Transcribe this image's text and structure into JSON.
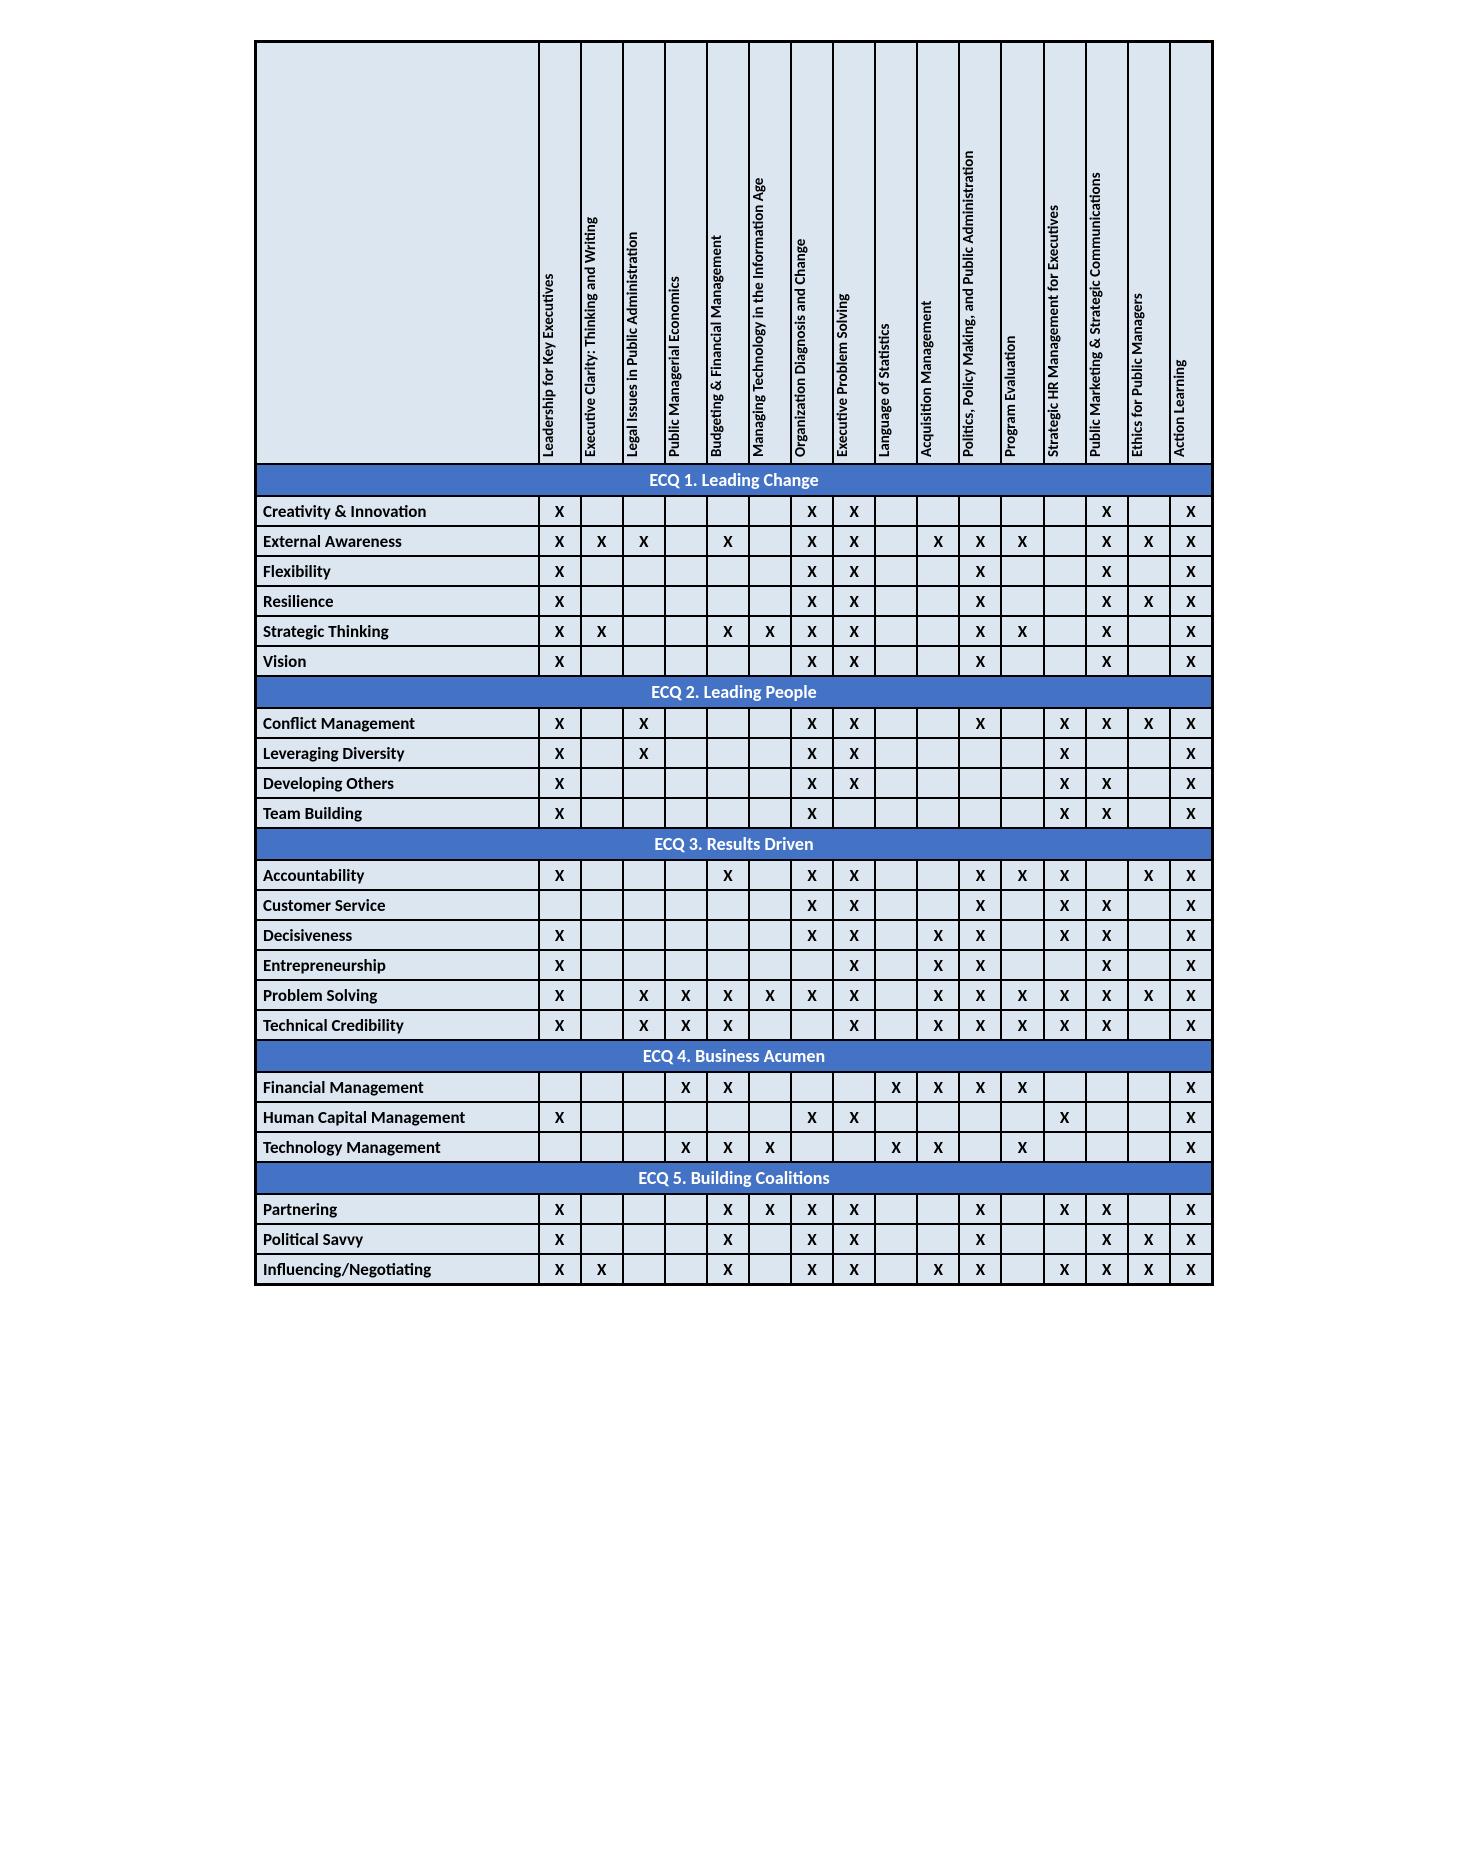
{
  "columns": [
    "Leadership for Key Executives",
    "Executive Clarity: Thinking and Writing",
    "Legal Issues in Public Administration",
    "Public Managerial Economics",
    "Budgeting & Financial Management",
    "Managing Technology in the Information Age",
    "Organization Diagnosis and Change",
    "Executive Problem Solving",
    "Language of Statistics",
    "Acquisition Management",
    "Politics, Policy Making, and Public Administration",
    "Program Evaluation",
    "Strategic HR Management for Executives",
    "Public Marketing & Strategic Communications",
    "Ethics for Public Managers",
    "Action Learning"
  ],
  "sections": [
    {
      "title": "ECQ 1. Leading Change",
      "rows": [
        {
          "label": "Creativity & Innovation",
          "marks": [
            1,
            0,
            0,
            0,
            0,
            0,
            1,
            1,
            0,
            0,
            0,
            0,
            0,
            1,
            0,
            1
          ]
        },
        {
          "label": "External Awareness",
          "marks": [
            1,
            1,
            1,
            0,
            1,
            0,
            1,
            1,
            0,
            1,
            1,
            1,
            0,
            1,
            1,
            1
          ]
        },
        {
          "label": "Flexibility",
          "marks": [
            1,
            0,
            0,
            0,
            0,
            0,
            1,
            1,
            0,
            0,
            1,
            0,
            0,
            1,
            0,
            1
          ]
        },
        {
          "label": "Resilience",
          "marks": [
            1,
            0,
            0,
            0,
            0,
            0,
            1,
            1,
            0,
            0,
            1,
            0,
            0,
            1,
            1,
            1
          ]
        },
        {
          "label": "Strategic Thinking",
          "marks": [
            1,
            1,
            0,
            0,
            1,
            1,
            1,
            1,
            0,
            0,
            1,
            1,
            0,
            1,
            0,
            1
          ]
        },
        {
          "label": "Vision",
          "marks": [
            1,
            0,
            0,
            0,
            0,
            0,
            1,
            1,
            0,
            0,
            1,
            0,
            0,
            1,
            0,
            1
          ]
        }
      ]
    },
    {
      "title": "ECQ 2. Leading People",
      "rows": [
        {
          "label": "Conflict Management",
          "marks": [
            1,
            0,
            1,
            0,
            0,
            0,
            1,
            1,
            0,
            0,
            1,
            0,
            1,
            1,
            1,
            1
          ]
        },
        {
          "label": "Leveraging Diversity",
          "marks": [
            1,
            0,
            1,
            0,
            0,
            0,
            1,
            1,
            0,
            0,
            0,
            0,
            1,
            0,
            0,
            1
          ]
        },
        {
          "label": "Developing Others",
          "marks": [
            1,
            0,
            0,
            0,
            0,
            0,
            1,
            1,
            0,
            0,
            0,
            0,
            1,
            1,
            0,
            1
          ]
        },
        {
          "label": "Team Building",
          "marks": [
            1,
            0,
            0,
            0,
            0,
            0,
            1,
            0,
            0,
            0,
            0,
            0,
            1,
            1,
            0,
            1
          ]
        }
      ]
    },
    {
      "title": "ECQ 3. Results Driven",
      "rows": [
        {
          "label": "Accountability",
          "marks": [
            1,
            0,
            0,
            0,
            1,
            0,
            1,
            1,
            0,
            0,
            1,
            1,
            1,
            0,
            1,
            1
          ]
        },
        {
          "label": "Customer Service",
          "marks": [
            0,
            0,
            0,
            0,
            0,
            0,
            1,
            1,
            0,
            0,
            1,
            0,
            1,
            1,
            0,
            1
          ]
        },
        {
          "label": "Decisiveness",
          "marks": [
            1,
            0,
            0,
            0,
            0,
            0,
            1,
            1,
            0,
            1,
            1,
            0,
            1,
            1,
            0,
            1
          ]
        },
        {
          "label": "Entrepreneurship",
          "marks": [
            1,
            0,
            0,
            0,
            0,
            0,
            0,
            1,
            0,
            1,
            1,
            0,
            0,
            1,
            0,
            1
          ]
        },
        {
          "label": "Problem Solving",
          "marks": [
            1,
            0,
            1,
            1,
            1,
            1,
            1,
            1,
            0,
            1,
            1,
            1,
            1,
            1,
            1,
            1
          ]
        },
        {
          "label": "Technical Credibility",
          "marks": [
            1,
            0,
            1,
            1,
            1,
            0,
            0,
            1,
            0,
            1,
            1,
            1,
            1,
            1,
            0,
            1
          ]
        }
      ]
    },
    {
      "title": "ECQ 4. Business Acumen",
      "rows": [
        {
          "label": "Financial Management",
          "marks": [
            0,
            0,
            0,
            1,
            1,
            0,
            0,
            0,
            1,
            1,
            1,
            1,
            0,
            0,
            0,
            1
          ]
        },
        {
          "label": "Human Capital Management",
          "marks": [
            1,
            0,
            0,
            0,
            0,
            0,
            1,
            1,
            0,
            0,
            0,
            0,
            1,
            0,
            0,
            1
          ]
        },
        {
          "label": "Technology Management",
          "marks": [
            0,
            0,
            0,
            1,
            1,
            1,
            0,
            0,
            1,
            1,
            0,
            1,
            0,
            0,
            0,
            1
          ]
        }
      ]
    },
    {
      "title": "ECQ 5. Building Coalitions",
      "rows": [
        {
          "label": "Partnering",
          "marks": [
            1,
            0,
            0,
            0,
            1,
            1,
            1,
            1,
            0,
            0,
            1,
            0,
            1,
            1,
            0,
            1
          ]
        },
        {
          "label": "Political Savvy",
          "marks": [
            1,
            0,
            0,
            0,
            1,
            0,
            1,
            1,
            0,
            0,
            1,
            0,
            0,
            1,
            1,
            1
          ]
        },
        {
          "label": "Influencing/Negotiating",
          "marks": [
            1,
            1,
            0,
            0,
            1,
            0,
            1,
            1,
            0,
            1,
            1,
            0,
            1,
            1,
            1,
            1
          ]
        }
      ]
    }
  ],
  "colors": {
    "cell_bg": "#dce6f1",
    "section_bg": "#4472c4",
    "section_fg": "#ffffff",
    "border": "#000000"
  }
}
